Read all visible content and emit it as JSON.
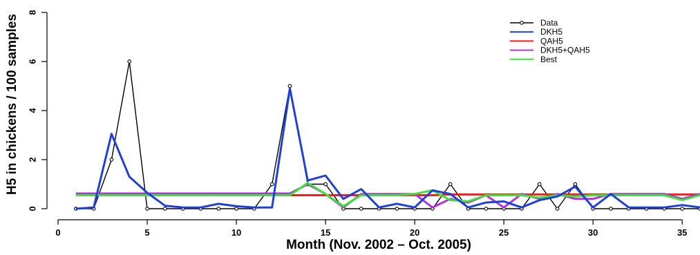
{
  "chart_data": {
    "type": "line",
    "title": "",
    "xlabel": "Month (Nov. 2002 – Oct. 2005)",
    "ylabel": "H5 in chickens / 100 samples",
    "xlim": [
      0,
      36
    ],
    "ylim": [
      0,
      8
    ],
    "x_ticks": [
      0,
      5,
      10,
      15,
      20,
      25,
      30,
      35
    ],
    "y_ticks": [
      0,
      2,
      4,
      6,
      8
    ],
    "grid": false,
    "legend_position": "top-right",
    "x": [
      1,
      2,
      3,
      4,
      5,
      6,
      7,
      8,
      9,
      10,
      11,
      12,
      13,
      14,
      15,
      16,
      17,
      18,
      19,
      20,
      21,
      22,
      23,
      24,
      25,
      26,
      27,
      28,
      29,
      30,
      31,
      32,
      33,
      34,
      35,
      36
    ],
    "series": [
      {
        "name": "Data",
        "color": "#000000",
        "style": "points-dashed",
        "values": [
          0,
          0,
          2,
          6,
          0,
          0,
          0,
          0,
          0,
          0,
          0,
          1,
          5,
          1,
          1,
          0,
          0,
          0,
          0,
          0,
          0,
          1,
          0,
          0,
          0,
          0,
          1,
          0,
          1,
          0,
          0,
          0,
          0,
          0,
          0,
          0
        ]
      },
      {
        "name": "DKH5",
        "color": "#1f3fd6",
        "style": "line",
        "values": [
          0,
          0.05,
          3.05,
          1.3,
          0.65,
          0.12,
          0.05,
          0.05,
          0.2,
          0.1,
          0.05,
          0.05,
          4.9,
          1.15,
          1.35,
          0.4,
          0.8,
          0.05,
          0.2,
          0.05,
          0.75,
          0.6,
          0.05,
          0.25,
          0.3,
          0.05,
          0.35,
          0.5,
          0.9,
          0.05,
          0.6,
          0.05,
          0.05,
          0.05,
          0.15,
          0.05
        ]
      },
      {
        "name": "QAH5",
        "color": "#e8231e",
        "style": "line",
        "values": [
          0.55,
          0.55,
          0.55,
          0.55,
          0.55,
          0.55,
          0.55,
          0.55,
          0.55,
          0.55,
          0.55,
          0.55,
          0.55,
          0.55,
          0.55,
          0.55,
          0.55,
          0.55,
          0.55,
          0.55,
          0.55,
          0.58,
          0.58,
          0.58,
          0.58,
          0.58,
          0.58,
          0.58,
          0.58,
          0.58,
          0.58,
          0.58,
          0.58,
          0.58,
          0.58,
          0.58
        ]
      },
      {
        "name": "DKH5+QAH5",
        "color": "#b233d6",
        "style": "line",
        "values": [
          0.62,
          0.62,
          0.62,
          0.62,
          0.62,
          0.62,
          0.62,
          0.62,
          0.62,
          0.62,
          0.62,
          0.62,
          0.62,
          1.0,
          0.6,
          0.05,
          0.6,
          0.6,
          0.6,
          0.6,
          0.05,
          0.4,
          0.25,
          0.55,
          0.05,
          0.6,
          0.4,
          0.6,
          0.4,
          0.4,
          0.6,
          0.6,
          0.6,
          0.6,
          0.4,
          0.6
        ]
      },
      {
        "name": "Best",
        "color": "#3ee03e",
        "style": "line",
        "values": [
          0.55,
          0.55,
          0.55,
          0.55,
          0.55,
          0.55,
          0.55,
          0.55,
          0.55,
          0.55,
          0.55,
          0.55,
          0.55,
          1.05,
          0.6,
          0.1,
          0.55,
          0.55,
          0.55,
          0.6,
          0.75,
          0.35,
          0.3,
          0.55,
          0.55,
          0.55,
          0.45,
          0.55,
          0.5,
          0.55,
          0.55,
          0.55,
          0.55,
          0.55,
          0.35,
          0.55
        ]
      }
    ]
  }
}
